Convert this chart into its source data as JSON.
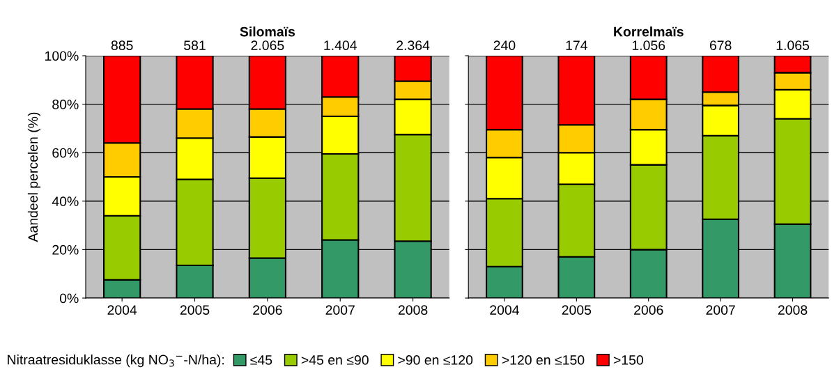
{
  "chart_data": [
    {
      "type": "bar",
      "title": "Silomaïs",
      "stacked": true,
      "categories": [
        "2004",
        "2005",
        "2006",
        "2007",
        "2008"
      ],
      "ylabel": "Aandeel percelen (%)",
      "ylim": [
        0,
        100
      ],
      "yticks": [
        {
          "value": 0,
          "label": "0%"
        },
        {
          "value": 20,
          "label": "20%"
        },
        {
          "value": 40,
          "label": "40%"
        },
        {
          "value": 60,
          "label": "60%"
        },
        {
          "value": 80,
          "label": "80%"
        },
        {
          "value": 100,
          "label": "100%"
        }
      ],
      "grid": "y",
      "annotations": [
        {
          "text": "885",
          "x": "2004",
          "y": 100
        },
        {
          "text": "581",
          "x": "2005",
          "y": 100
        },
        {
          "text": "2.065",
          "x": "2006",
          "y": 100
        },
        {
          "text": "1.404",
          "x": "2007",
          "y": 100
        },
        {
          "text": "2.364",
          "x": "2008",
          "y": 100
        }
      ],
      "legend": "bottom",
      "legend_title": "Nitraatresiduklasse (kg NO$_{3}$$^{−}$-N/ha):",
      "series": [
        {
          "name": "≤45",
          "color": "#339966",
          "values": [
            7.5,
            13.5,
            16.5,
            24,
            23.5
          ]
        },
        {
          "name": ">45 en ≤90",
          "color": "#99cc00",
          "values": [
            26.5,
            35.5,
            33,
            35.5,
            44
          ]
        },
        {
          "name": ">90 en ≤120",
          "color": "#ffff00",
          "values": [
            16,
            17,
            17,
            15.5,
            14.5
          ]
        },
        {
          "name": ">120 en ≤150",
          "color": "#ffcc00",
          "values": [
            14,
            12,
            11.5,
            8,
            7.5
          ]
        },
        {
          "name": ">150",
          "color": "#ff0000",
          "values": [
            36,
            22,
            22,
            17,
            10.5
          ]
        }
      ]
    },
    {
      "type": "bar",
      "title": "Korrelmaïs",
      "stacked": true,
      "categories": [
        "2004",
        "2005",
        "2006",
        "2007",
        "2008"
      ],
      "ylim": [
        0,
        100
      ],
      "yticks": [
        {
          "value": 0,
          "label": null
        },
        {
          "value": 20,
          "label": null
        },
        {
          "value": 40,
          "label": null
        },
        {
          "value": 60,
          "label": null
        },
        {
          "value": 80,
          "label": null
        },
        {
          "value": 100,
          "label": null
        }
      ],
      "tick_labels": "x",
      "grid": "y",
      "annotations": [
        {
          "text": "240",
          "x": "2004",
          "y": 100
        },
        {
          "text": "174",
          "x": "2005",
          "y": 100
        },
        {
          "text": "1.056",
          "x": "2006",
          "y": 100
        },
        {
          "text": "678",
          "x": "2007",
          "y": 100
        },
        {
          "text": "1.065",
          "x": "2008",
          "y": 100
        }
      ],
      "series": [
        {
          "color": "#339966",
          "values": [
            13,
            17,
            20,
            32.5,
            30.5
          ]
        },
        {
          "color": "#99cc00",
          "values": [
            28,
            30,
            35,
            34.5,
            43.5
          ]
        },
        {
          "color": "#ffff00",
          "values": [
            17,
            13,
            14.5,
            12.5,
            12
          ]
        },
        {
          "color": "#ffcc00",
          "values": [
            11.5,
            11.5,
            12.5,
            5.5,
            7
          ]
        },
        {
          "color": "#ff0000",
          "values": [
            30.5,
            28.5,
            18,
            15,
            7
          ]
        }
      ]
    }
  ]
}
